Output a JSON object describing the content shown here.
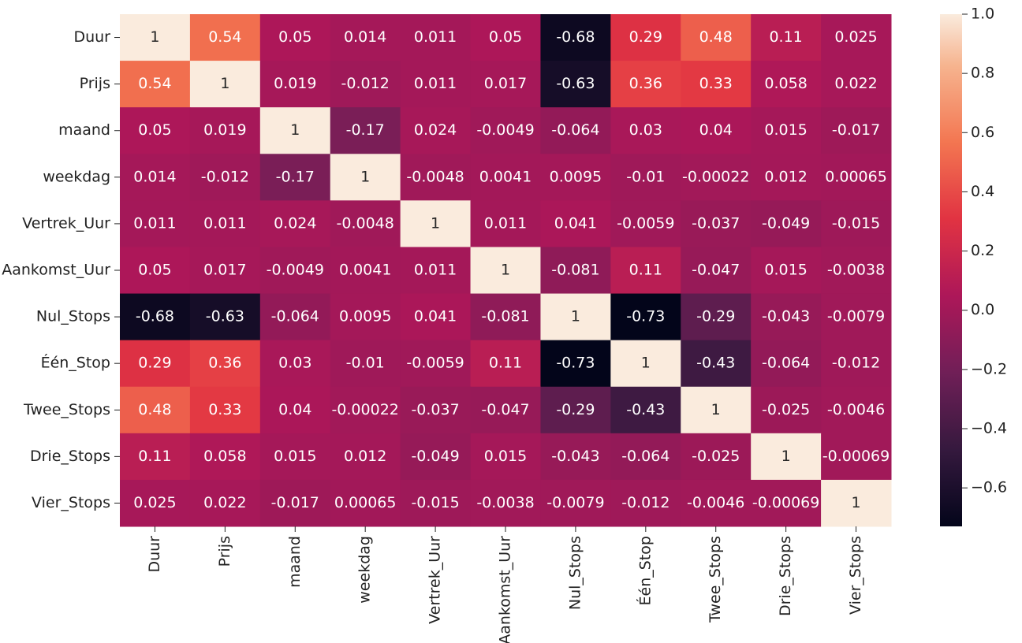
{
  "chart_data": {
    "type": "heatmap",
    "x_categories": [
      "Duur",
      "Prijs",
      "maand",
      "weekdag",
      "Vertrek_Uur",
      "Aankomst_Uur",
      "Nul_Stops",
      "Één_Stop",
      "Twee_Stops",
      "Drie_Stops",
      "Vier_Stops"
    ],
    "y_categories": [
      "Duur",
      "Prijs",
      "maand",
      "weekdag",
      "Vertrek_Uur",
      "Aankomst_Uur",
      "Nul_Stops",
      "Één_Stop",
      "Twee_Stops",
      "Drie_Stops",
      "Vier_Stops"
    ],
    "values": [
      [
        1,
        0.54,
        0.05,
        0.014,
        0.011,
        0.05,
        -0.68,
        0.29,
        0.48,
        0.11,
        0.025
      ],
      [
        0.54,
        1,
        0.019,
        -0.012,
        0.011,
        0.017,
        -0.63,
        0.36,
        0.33,
        0.058,
        0.022
      ],
      [
        0.05,
        0.019,
        1,
        -0.17,
        0.024,
        -0.0049,
        -0.064,
        0.03,
        0.04,
        0.015,
        -0.017
      ],
      [
        0.014,
        -0.012,
        -0.17,
        1,
        -0.0048,
        0.0041,
        0.0095,
        -0.01,
        -0.00022,
        0.012,
        0.00065
      ],
      [
        0.011,
        0.011,
        0.024,
        -0.0048,
        1,
        0.011,
        0.041,
        -0.0059,
        -0.037,
        -0.049,
        -0.015
      ],
      [
        0.05,
        0.017,
        -0.0049,
        0.0041,
        0.011,
        1,
        -0.081,
        0.11,
        -0.047,
        0.015,
        -0.0038
      ],
      [
        -0.68,
        -0.63,
        -0.064,
        0.0095,
        0.041,
        -0.081,
        1,
        -0.73,
        -0.29,
        -0.043,
        -0.0079
      ],
      [
        0.29,
        0.36,
        0.03,
        -0.01,
        -0.0059,
        0.11,
        -0.73,
        1,
        -0.43,
        -0.064,
        -0.012
      ],
      [
        0.48,
        0.33,
        0.04,
        -0.00022,
        -0.037,
        -0.047,
        -0.29,
        -0.43,
        1,
        -0.025,
        -0.0046
      ],
      [
        0.11,
        0.058,
        0.015,
        0.012,
        -0.049,
        0.015,
        -0.043,
        -0.064,
        -0.025,
        1,
        -0.00069
      ],
      [
        0.025,
        0.022,
        -0.017,
        0.00065,
        -0.015,
        -0.0038,
        -0.0079,
        -0.012,
        -0.0046,
        -0.00069,
        1
      ]
    ],
    "zlim": [
      -0.73,
      1
    ],
    "zticks": [
      {
        "value": 1,
        "label": "1.0"
      },
      0.8,
      0.6,
      0.4,
      0.2,
      {
        "value": 0,
        "label": "0.0"
      },
      {
        "value": -0.2,
        "label": "−0.2"
      },
      {
        "value": -0.4,
        "label": "−0.4"
      },
      {
        "value": -0.6,
        "label": "−0.6"
      }
    ],
    "colormap": "rocket"
  }
}
